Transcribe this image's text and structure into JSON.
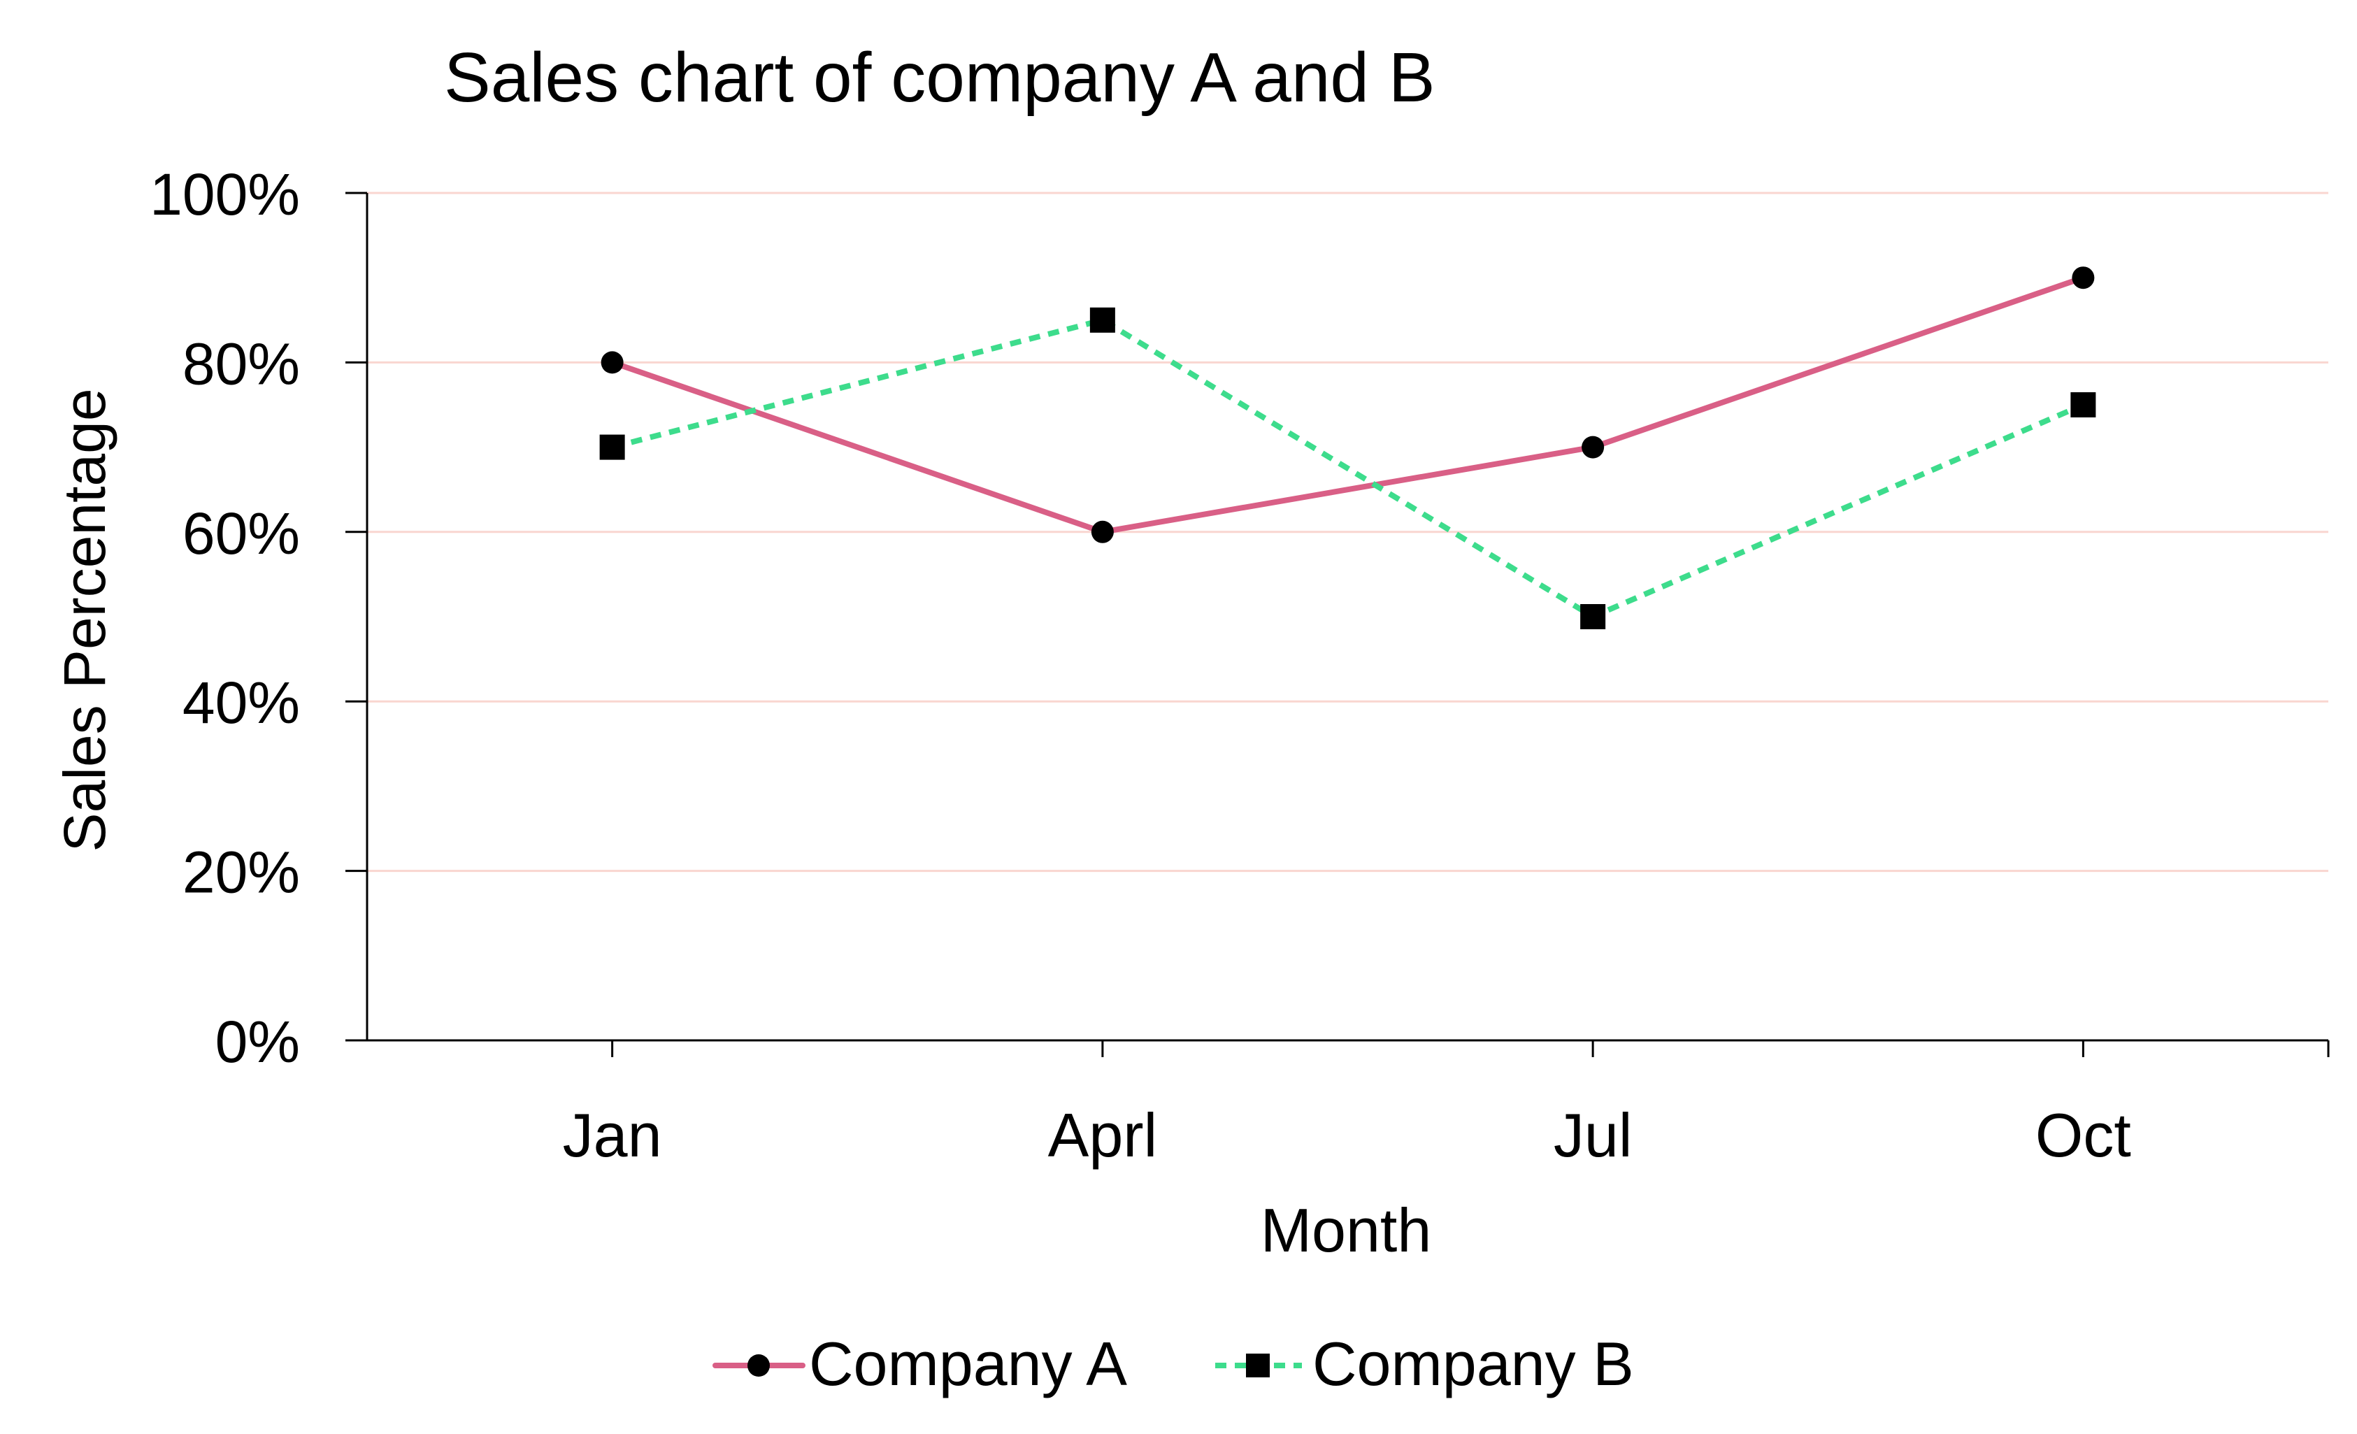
{
  "chart_data": {
    "type": "line",
    "title": "Sales chart of company A and B",
    "xlabel": "Month",
    "ylabel": "Sales Percentage",
    "categories": [
      "Jan",
      "Aprl",
      "Jul",
      "Oct"
    ],
    "ylim": [
      0,
      100
    ],
    "yticks": [
      0,
      20,
      40,
      60,
      80,
      100
    ],
    "ytick_labels": [
      "0%",
      "20%",
      "40%",
      "60%",
      "80%",
      "100%"
    ],
    "grid": "horizontal",
    "legend": "bottom-center",
    "series": [
      {
        "name": "Company A",
        "values": [
          80,
          60,
          70,
          90
        ],
        "color": "#d95f86",
        "line": "solid",
        "marker": "circle"
      },
      {
        "name": "Company B",
        "values": [
          70,
          85,
          50,
          75
        ],
        "color": "#3ddc8c",
        "line": "dashed",
        "marker": "square"
      }
    ],
    "colors": {
      "grid": "#f9d6d0",
      "axis": "#000000",
      "marker": "#000000"
    }
  }
}
